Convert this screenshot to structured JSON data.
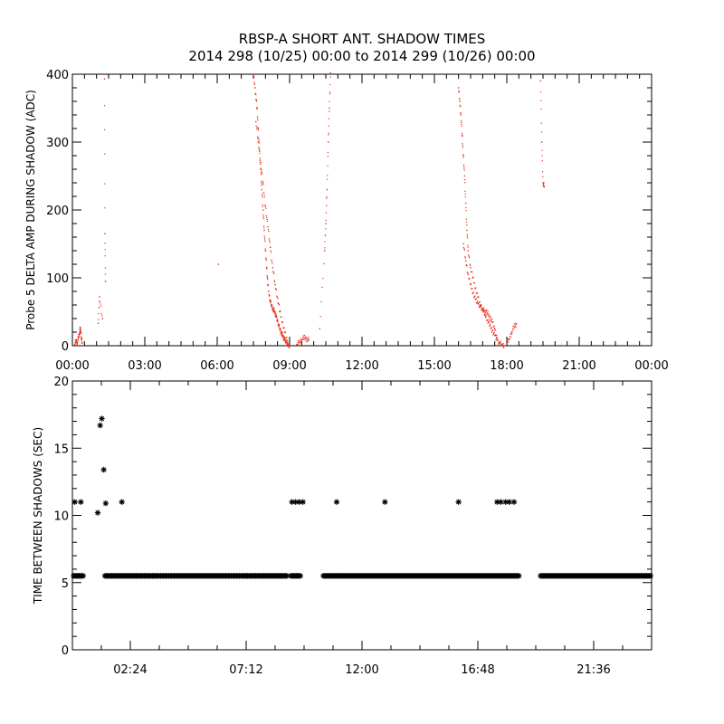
{
  "title_line1": "RBSP-A SHORT ANT. SHADOW TIMES",
  "title_line2": "2014 298 (10/25) 00:00 to 2014 299 (10/26) 00:00",
  "colors": {
    "top_points": "#e8301c",
    "bottom_points": "#000000",
    "axes": "#000000"
  },
  "chart_data": [
    {
      "type": "scatter",
      "title": "",
      "xlabel": "",
      "ylabel": "Probe 5 DELTA AMP DURING SHADOW (ADC)",
      "xlim": [
        0,
        24
      ],
      "ylim": [
        0,
        400
      ],
      "x_unit": "hours",
      "x_ticks": [
        0,
        3,
        6,
        9,
        12,
        15,
        18,
        21,
        24
      ],
      "x_tick_labels": [
        "00:00",
        "03:00",
        "06:00",
        "09:00",
        "12:00",
        "15:00",
        "18:00",
        "21:00",
        "00:00"
      ],
      "y_ticks": [
        0,
        100,
        200,
        300,
        400
      ],
      "y_tick_labels": [
        "0",
        "100",
        "200",
        "300",
        "400"
      ],
      "series": [
        {
          "color": "#e8301c",
          "marker": "dot",
          "traces": [
            {
              "x": [
                0.1,
                0.15,
                0.2,
                0.25,
                0.3,
                0.32,
                0.35,
                0.38,
                0.4
              ],
              "y": [
                2,
                8,
                5,
                12,
                18,
                25,
                20,
                10,
                4
              ]
            },
            {
              "x": [
                1.07,
                1.12,
                1.25
              ],
              "y": [
                33,
                72,
                40
              ]
            },
            {
              "x": [
                1.33,
                1.35,
                1.37
              ],
              "y": [
                393,
                165,
                95
              ]
            },
            {
              "x": [
                6.05
              ],
              "y": [
                120
              ]
            },
            {
              "x": [
                7.5,
                7.55,
                7.6,
                7.65,
                7.7,
                7.75,
                7.8,
                7.85,
                7.9,
                7.95,
                8.0,
                8.05,
                8.1,
                8.15,
                8.2,
                8.25,
                8.3,
                8.35,
                8.4,
                8.45,
                8.5,
                8.55,
                8.6,
                8.65,
                8.7,
                8.75,
                8.8,
                8.85,
                8.9,
                8.95,
                9.0
              ],
              "y": [
                400,
                385,
                370,
                350,
                320,
                290,
                260,
                230,
                200,
                170,
                140,
                115,
                90,
                75,
                65,
                60,
                55,
                52,
                48,
                42,
                36,
                30,
                25,
                20,
                16,
                12,
                8,
                5,
                3,
                1,
                0
              ]
            },
            {
              "x": [
                7.6,
                7.7,
                7.8,
                7.9,
                8.0,
                8.1,
                8.2,
                8.3,
                8.4,
                8.5,
                8.6,
                8.7,
                8.8,
                8.9
              ],
              "y": [
                330,
                300,
                270,
                240,
                205,
                175,
                145,
                115,
                90,
                70,
                50,
                35,
                20,
                8
              ]
            },
            {
              "x": [
                9.3,
                9.4,
                9.5,
                9.6,
                9.7,
                9.8
              ],
              "y": [
                2,
                6,
                9,
                12,
                10,
                8
              ]
            },
            {
              "x": [
                10.25,
                10.45,
                10.5,
                10.55,
                10.6,
                10.65,
                10.7
              ],
              "y": [
                25,
                140,
                180,
                230,
                300,
                350,
                402
              ]
            },
            {
              "x": [
                16.0,
                16.05,
                16.1,
                16.15,
                16.2,
                16.25,
                16.3,
                16.35,
                16.4,
                16.5,
                16.6,
                16.7,
                16.8,
                16.9,
                17.0,
                17.1,
                17.2,
                17.3,
                17.4,
                17.5,
                17.6,
                17.7,
                17.8,
                17.9
              ],
              "y": [
                380,
                360,
                340,
                310,
                280,
                250,
                210,
                170,
                140,
                115,
                100,
                85,
                72,
                60,
                52,
                45,
                38,
                30,
                22,
                15,
                8,
                4,
                2,
                0
              ]
            },
            {
              "x": [
                16.2,
                16.3,
                16.4,
                16.5,
                16.6,
                16.7,
                16.8,
                16.9,
                17.0,
                17.1,
                17.2,
                17.3,
                17.4,
                17.5,
                17.6
              ],
              "y": [
                150,
                125,
                105,
                90,
                78,
                68,
                62,
                58,
                55,
                52,
                48,
                42,
                35,
                25,
                12
              ]
            },
            {
              "x": [
                18.0,
                18.1,
                18.2,
                18.3,
                18.4
              ],
              "y": [
                3,
                10,
                20,
                28,
                32
              ]
            },
            {
              "x": [
                19.4,
                19.45,
                19.5,
                19.55
              ],
              "y": [
                390,
                300,
                240,
                235
              ]
            }
          ]
        }
      ]
    },
    {
      "type": "scatter",
      "title": "",
      "xlabel": "",
      "ylabel": "TIME BETWEEN SHADOWS (SEC)",
      "xlim": [
        0,
        24
      ],
      "ylim": [
        0,
        20
      ],
      "x_unit": "hours",
      "x_ticks": [
        2.4,
        7.2,
        12.0,
        16.8,
        21.6
      ],
      "x_tick_labels": [
        "02:24",
        "07:12",
        "12:00",
        "16:48",
        "21:36"
      ],
      "y_ticks": [
        0,
        5,
        10,
        15,
        20
      ],
      "y_tick_labels": [
        "0",
        "5",
        "10",
        "15",
        "20"
      ],
      "series": [
        {
          "color": "#000000",
          "marker": "asterisk",
          "runs": [
            {
              "x_start": 0.05,
              "x_end": 0.45,
              "y": 5.5
            },
            {
              "x_start": 1.35,
              "x_end": 8.9,
              "y": 5.5
            },
            {
              "x_start": 9.05,
              "x_end": 9.5,
              "y": 5.5
            },
            {
              "x_start": 10.4,
              "x_end": 18.5,
              "y": 5.5
            },
            {
              "x_start": 19.4,
              "x_end": 24.0,
              "y": 5.5
            }
          ],
          "points": {
            "x": [
              0.1,
              0.35,
              1.05,
              1.15,
              1.22,
              1.3,
              1.38,
              2.05,
              9.1,
              9.25,
              9.4,
              9.55,
              10.95,
              12.95,
              16.0,
              17.6,
              17.75,
              17.95,
              18.1,
              18.3
            ],
            "y": [
              11.0,
              11.0,
              10.2,
              16.7,
              17.2,
              13.4,
              10.9,
              11.0,
              11.0,
              11.0,
              11.0,
              11.0,
              11.0,
              11.0,
              11.0,
              11.0,
              11.0,
              11.0,
              11.0,
              11.0
            ]
          }
        }
      ]
    }
  ]
}
